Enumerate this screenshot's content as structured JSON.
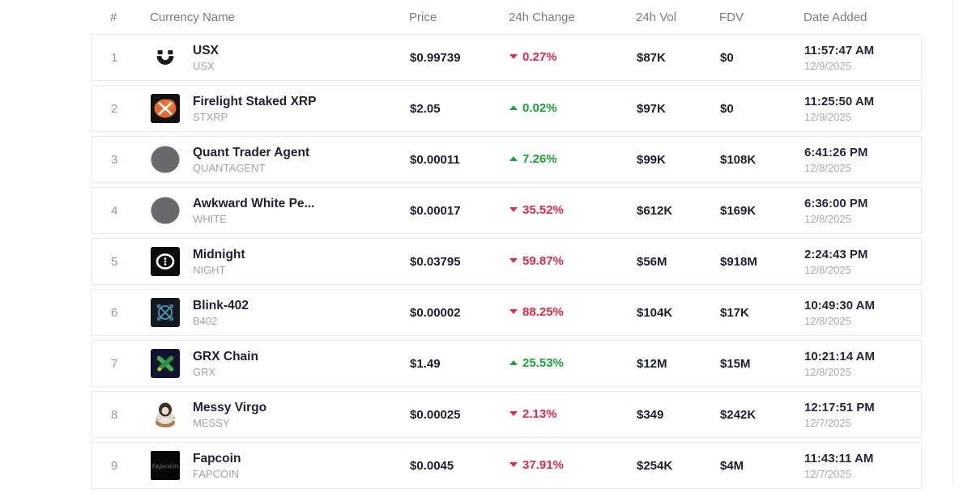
{
  "table": {
    "headers": [
      "#",
      "Currency Name",
      "Price",
      "24h Change",
      "24h Vol",
      "FDV",
      "Date Added"
    ],
    "colors": {
      "up": "#17a338",
      "down": "#e0294a",
      "row_border": "#e8e9ec",
      "header_text": "#7b7b81",
      "name_text": "#212134"
    },
    "rows": [
      {
        "rank": "1",
        "name": "USX",
        "symbol": "USX",
        "icon": "usx-logo",
        "price": "$0.99739",
        "change": "0.27%",
        "direction": "down",
        "vol": "$87K",
        "fdv": "$0",
        "time": "11:57:47 AM",
        "date": "12/9/2025"
      },
      {
        "rank": "2",
        "name": "Firelight Staked XRP",
        "symbol": "STXRP",
        "icon": "xrp-logo",
        "price": "$2.05",
        "change": "0.02%",
        "direction": "up",
        "vol": "$97K",
        "fdv": "$0",
        "time": "11:25:50 AM",
        "date": "12/9/2025"
      },
      {
        "rank": "3",
        "name": "Quant Trader Agent",
        "symbol": "QUANTAGENT",
        "icon": "gray-circle",
        "price": "$0.00011",
        "change": "7.26%",
        "direction": "up",
        "vol": "$99K",
        "fdv": "$108K",
        "time": "6:41:26 PM",
        "date": "12/8/2025"
      },
      {
        "rank": "4",
        "name": "Awkward White Pe...",
        "symbol": "WHITE",
        "icon": "gray-circle",
        "price": "$0.00017",
        "change": "35.52%",
        "direction": "down",
        "vol": "$612K",
        "fdv": "$169K",
        "time": "6:36:00 PM",
        "date": "12/8/2025"
      },
      {
        "rank": "5",
        "name": "Midnight",
        "symbol": "NIGHT",
        "icon": "midnight-logo",
        "price": "$0.03795",
        "change": "59.87%",
        "direction": "down",
        "vol": "$56M",
        "fdv": "$918M",
        "time": "2:24:43 PM",
        "date": "12/8/2025"
      },
      {
        "rank": "6",
        "name": "Blink-402",
        "symbol": "B402",
        "icon": "blink-logo",
        "price": "$0.00002",
        "change": "88.25%",
        "direction": "down",
        "vol": "$104K",
        "fdv": "$17K",
        "time": "10:49:30 AM",
        "date": "12/8/2025"
      },
      {
        "rank": "7",
        "name": "GRX Chain",
        "symbol": "GRX",
        "icon": "grx-logo",
        "price": "$1.49",
        "change": "25.53%",
        "direction": "up",
        "vol": "$12M",
        "fdv": "$15M",
        "time": "10:21:14 AM",
        "date": "12/8/2025"
      },
      {
        "rank": "8",
        "name": "Messy Virgo",
        "symbol": "MESSY",
        "icon": "messy-virgo-avatar",
        "price": "$0.00025",
        "change": "2.13%",
        "direction": "down",
        "vol": "$349",
        "fdv": "$242K",
        "time": "12:17:51 PM",
        "date": "12/7/2025"
      },
      {
        "rank": "9",
        "name": "Fapcoin",
        "symbol": "FAPCOIN",
        "icon": "fapcoin-logo",
        "price": "$0.0045",
        "change": "37.91%",
        "direction": "down",
        "vol": "$254K",
        "fdv": "$4M",
        "time": "11:43:11 AM",
        "date": "12/7/2025"
      }
    ]
  }
}
